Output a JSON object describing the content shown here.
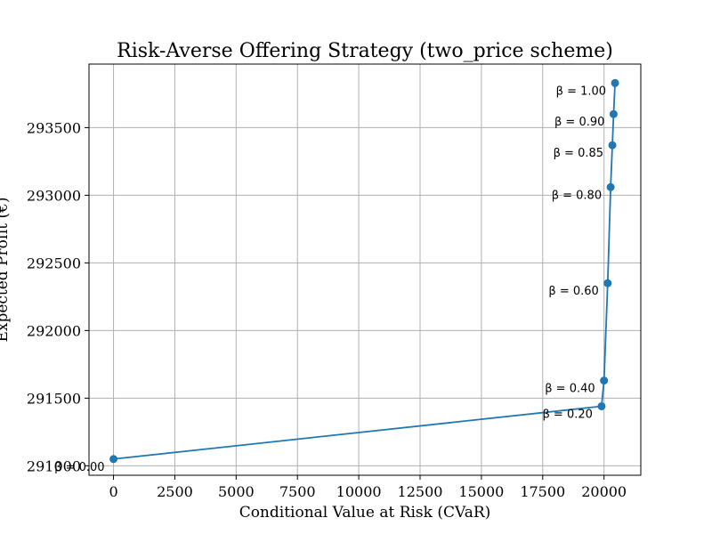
{
  "chart_data": {
    "type": "line",
    "title": "Risk-Averse Offering Strategy (two_price scheme)",
    "xlabel": "Conditional Value at Risk (CVaR)",
    "ylabel": "Expected Profit (€)",
    "xlim": [
      -1000,
      21500
    ],
    "ylim": [
      290930,
      293970
    ],
    "xticks": [
      0,
      2500,
      5000,
      7500,
      10000,
      12500,
      15000,
      17500,
      20000
    ],
    "yticks": [
      291000,
      291500,
      292000,
      292500,
      293000,
      293500
    ],
    "grid": true,
    "series": [
      {
        "color": "#1f77b4",
        "points": [
          {
            "x": 0,
            "y": 291050,
            "label": "β = 0.00"
          },
          {
            "x": 19900,
            "y": 291440,
            "label": "β = 0.20"
          },
          {
            "x": 20000,
            "y": 291630,
            "label": "β = 0.40"
          },
          {
            "x": 20150,
            "y": 292350,
            "label": "β = 0.60"
          },
          {
            "x": 20270,
            "y": 293060,
            "label": "β = 0.80"
          },
          {
            "x": 20340,
            "y": 293370,
            "label": "β = 0.85"
          },
          {
            "x": 20390,
            "y": 293600,
            "label": "β = 0.90"
          },
          {
            "x": 20450,
            "y": 293830,
            "label": "β = 1.00"
          }
        ]
      }
    ]
  }
}
